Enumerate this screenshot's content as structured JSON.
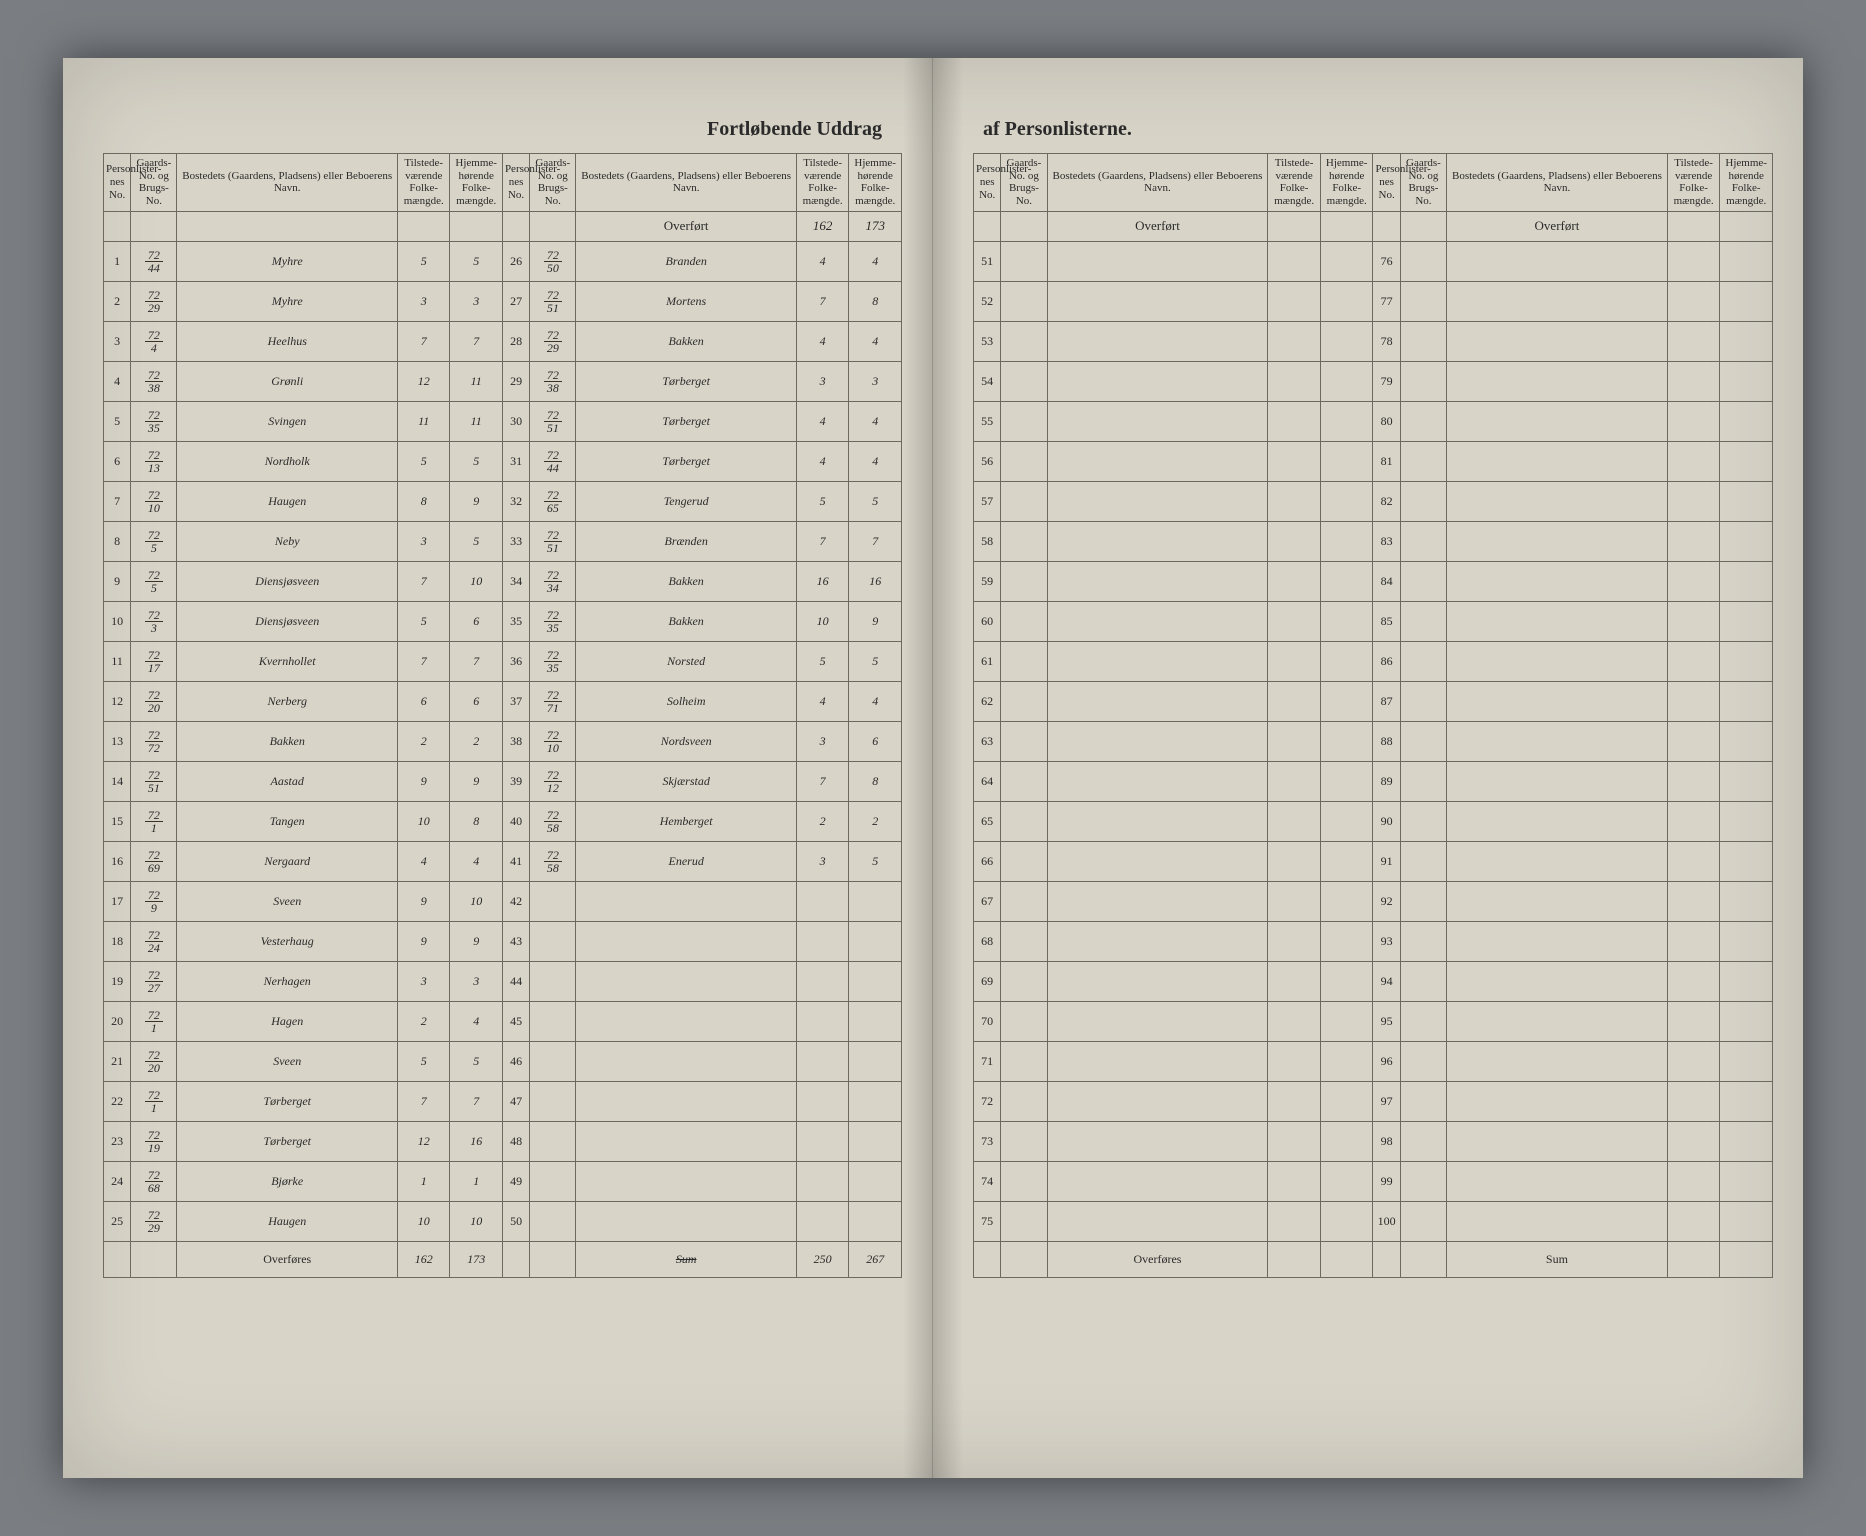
{
  "title_left": "Fortløbende Uddrag",
  "title_right": "af Personlisterne.",
  "headers": {
    "personliste": "Personlister-nes No.",
    "gaards": "Gaards-No. og Brugs-No.",
    "bosted": "Bostedets (Gaardens, Pladsens) eller Beboerens Navn.",
    "tilstede": "Tilstede-værende Folke-mængde.",
    "hjemme": "Hjemme-hørende Folke-mængde."
  },
  "overfort": "Overført",
  "overfores": "Overføres",
  "sum": "Sum",
  "overfort_vals": {
    "c2_t": "162",
    "c2_h": "173"
  },
  "col1": [
    {
      "n": "1",
      "g": "72/44",
      "name": "Myhre",
      "t": "5",
      "h": "5"
    },
    {
      "n": "2",
      "g": "72/29",
      "name": "Myhre",
      "t": "3",
      "h": "3"
    },
    {
      "n": "3",
      "g": "72/4",
      "name": "Heelhus",
      "t": "7",
      "h": "7"
    },
    {
      "n": "4",
      "g": "72/38",
      "name": "Grønli",
      "t": "12",
      "h": "11"
    },
    {
      "n": "5",
      "g": "72/35",
      "name": "Svingen",
      "t": "11",
      "h": "11"
    },
    {
      "n": "6",
      "g": "72/13",
      "name": "Nordholk",
      "t": "5",
      "h": "5"
    },
    {
      "n": "7",
      "g": "72/10",
      "name": "Haugen",
      "t": "8",
      "h": "9"
    },
    {
      "n": "8",
      "g": "72/5",
      "name": "Neby",
      "t": "3",
      "h": "5"
    },
    {
      "n": "9",
      "g": "72/5",
      "name": "Diensjøsveen",
      "t": "7",
      "h": "10"
    },
    {
      "n": "10",
      "g": "72/3",
      "name": "Diensjøsveen",
      "t": "5",
      "h": "6"
    },
    {
      "n": "11",
      "g": "72/17",
      "name": "Kvernhollet",
      "t": "7",
      "h": "7"
    },
    {
      "n": "12",
      "g": "72/20",
      "name": "Nerberg",
      "t": "6",
      "h": "6"
    },
    {
      "n": "13",
      "g": "72/72",
      "name": "Bakken",
      "t": "2",
      "h": "2"
    },
    {
      "n": "14",
      "g": "72/51",
      "name": "Aastad",
      "t": "9",
      "h": "9"
    },
    {
      "n": "15",
      "g": "72/1",
      "name": "Tangen",
      "t": "10",
      "h": "8"
    },
    {
      "n": "16",
      "g": "72/69",
      "name": "Nergaard",
      "t": "4",
      "h": "4"
    },
    {
      "n": "17",
      "g": "72/9",
      "name": "Sveen",
      "t": "9",
      "h": "10"
    },
    {
      "n": "18",
      "g": "72/24",
      "name": "Vesterhaug",
      "t": "9",
      "h": "9"
    },
    {
      "n": "19",
      "g": "72/27",
      "name": "Nerhagen",
      "t": "3",
      "h": "3"
    },
    {
      "n": "20",
      "g": "72/1",
      "name": "Hagen",
      "t": "2",
      "h": "4"
    },
    {
      "n": "21",
      "g": "72/20",
      "name": "Sveen",
      "t": "5",
      "h": "5"
    },
    {
      "n": "22",
      "g": "72/1",
      "name": "Tørberget",
      "t": "7",
      "h": "7"
    },
    {
      "n": "23",
      "g": "72/19",
      "name": "Tørberget",
      "t": "12",
      "h": "16"
    },
    {
      "n": "24",
      "g": "72/68",
      "name": "Bjørke",
      "t": "1",
      "h": "1"
    },
    {
      "n": "25",
      "g": "72/29",
      "name": "Haugen",
      "t": "10",
      "h": "10"
    }
  ],
  "col1_sum": {
    "t": "162",
    "h": "173"
  },
  "col2": [
    {
      "n": "26",
      "g": "72/50",
      "name": "Branden",
      "t": "4",
      "h": "4"
    },
    {
      "n": "27",
      "g": "72/51",
      "name": "Mortens",
      "t": "7",
      "h": "8"
    },
    {
      "n": "28",
      "g": "72/29",
      "name": "Bakken",
      "t": "4",
      "h": "4"
    },
    {
      "n": "29",
      "g": "72/38",
      "name": "Tørberget",
      "t": "3",
      "h": "3"
    },
    {
      "n": "30",
      "g": "72/51",
      "name": "Tørberget",
      "t": "4",
      "h": "4"
    },
    {
      "n": "31",
      "g": "72/44",
      "name": "Tørberget",
      "t": "4",
      "h": "4"
    },
    {
      "n": "32",
      "g": "72/65",
      "name": "Tengerud",
      "t": "5",
      "h": "5"
    },
    {
      "n": "33",
      "g": "72/51",
      "name": "Brænden",
      "t": "7",
      "h": "7"
    },
    {
      "n": "34",
      "g": "72/34",
      "name": "Bakken",
      "t": "16",
      "h": "16"
    },
    {
      "n": "35",
      "g": "72/35",
      "name": "Bakken",
      "t": "10",
      "h": "9"
    },
    {
      "n": "36",
      "g": "72/35",
      "name": "Norsted",
      "t": "5",
      "h": "5"
    },
    {
      "n": "37",
      "g": "72/71",
      "name": "Solheim",
      "t": "4",
      "h": "4"
    },
    {
      "n": "38",
      "g": "72/10",
      "name": "Nordsveen",
      "t": "3",
      "h": "6"
    },
    {
      "n": "39",
      "g": "72/12",
      "name": "Skjærstad",
      "t": "7",
      "h": "8"
    },
    {
      "n": "40",
      "g": "72/58",
      "name": "Hemberget",
      "t": "2",
      "h": "2"
    },
    {
      "n": "41",
      "g": "72/58",
      "name": "Enerud",
      "t": "3",
      "h": "5"
    },
    {
      "n": "42",
      "g": "",
      "name": "",
      "t": "",
      "h": ""
    },
    {
      "n": "43",
      "g": "",
      "name": "",
      "t": "",
      "h": ""
    },
    {
      "n": "44",
      "g": "",
      "name": "",
      "t": "",
      "h": ""
    },
    {
      "n": "45",
      "g": "",
      "name": "",
      "t": "",
      "h": ""
    },
    {
      "n": "46",
      "g": "",
      "name": "",
      "t": "",
      "h": ""
    },
    {
      "n": "47",
      "g": "",
      "name": "",
      "t": "",
      "h": ""
    },
    {
      "n": "48",
      "g": "",
      "name": "",
      "t": "",
      "h": ""
    },
    {
      "n": "49",
      "g": "",
      "name": "",
      "t": "",
      "h": ""
    },
    {
      "n": "50",
      "g": "",
      "name": "",
      "t": "",
      "h": ""
    }
  ],
  "col2_sum_label": "Sum",
  "col2_sum": {
    "t": "250",
    "h": "267"
  },
  "col3_nums": [
    "51",
    "52",
    "53",
    "54",
    "55",
    "56",
    "57",
    "58",
    "59",
    "60",
    "61",
    "62",
    "63",
    "64",
    "65",
    "66",
    "67",
    "68",
    "69",
    "70",
    "71",
    "72",
    "73",
    "74",
    "75"
  ],
  "col4_nums": [
    "76",
    "77",
    "78",
    "79",
    "80",
    "81",
    "82",
    "83",
    "84",
    "85",
    "86",
    "87",
    "88",
    "89",
    "90",
    "91",
    "92",
    "93",
    "94",
    "95",
    "96",
    "97",
    "98",
    "99",
    "100"
  ]
}
